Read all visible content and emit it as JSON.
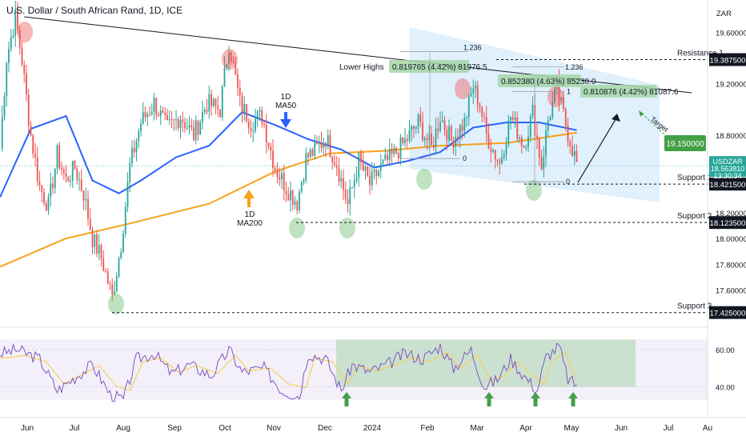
{
  "header": {
    "title": "U.S. Dollar / South African Rand, 1D, ICE"
  },
  "currency": "ZAR",
  "chart_data": {
    "type": "candlestick",
    "symbol": "USDZAR",
    "ylim": [
      17.33,
      19.85
    ],
    "y_ticks": [
      {
        "value": 19.6,
        "label": "19.600000"
      },
      {
        "value": 19.2,
        "label": "19.200000"
      },
      {
        "value": 18.8,
        "label": "18.800000"
      },
      {
        "value": 18.2,
        "label": "18.200000"
      },
      {
        "value": 18.0,
        "label": "18.000000"
      },
      {
        "value": 17.8,
        "label": "17.800000"
      },
      {
        "value": 17.6,
        "label": "17.600000"
      }
    ],
    "x_ticks": [
      "Jun",
      "Jul",
      "Aug",
      "Sep",
      "Oct",
      "Nov",
      "Dec",
      "2024",
      "Feb",
      "Mar",
      "Apr",
      "May",
      "Jun",
      "Jul",
      "Au"
    ],
    "price": {
      "label": "USDZAR",
      "value": "18.563810",
      "countdown": "13:30:34",
      "y": 18.564
    },
    "levels": [
      {
        "name": "Resistance 1",
        "value": 19.3875,
        "label": "19.387500"
      },
      {
        "name": "Support 1",
        "value": 18.4215,
        "label": "18.421500"
      },
      {
        "name": "Support 2",
        "value": 18.1235,
        "label": "18.123500"
      },
      {
        "name": "Support 3",
        "value": 17.425,
        "label": "17.425000"
      }
    ],
    "target": {
      "name": "Target",
      "value": 19.15,
      "label": "19.150000"
    },
    "moving_averages": [
      {
        "name": "1D MA50",
        "line1": "1D",
        "line2": "MA50",
        "color": "#2962ff"
      },
      {
        "name": "1D MA200",
        "line1": "1D",
        "line2": "MA200",
        "color": "#f7a21b"
      }
    ],
    "annotations": {
      "lower_highs": "Lower Highs",
      "measure_1": "0.819765 (4.42%) 81976.5",
      "measure_2": "0.852380 (4.63%) 85238.0",
      "measure_3": "0.810876 (4.42%) 81087.6",
      "fib_a_top": "1.236",
      "fib_a_zero": "0",
      "fib_b_top": "1.236",
      "fib_b_one": "1",
      "fib_b_zero": "0"
    },
    "rsi": {
      "ylim": [
        29,
        70
      ],
      "ticks": [
        {
          "value": 60,
          "label": "60.00"
        },
        {
          "value": 40,
          "label": "40.00"
        }
      ]
    },
    "colors": {
      "up": "#26a69a",
      "down": "#ef5350",
      "ma50": "#2962ff",
      "ma200": "#f7a21b",
      "rsi": "#7e57c2",
      "rsi_ma": "#f5d05b",
      "target": "#43a047"
    }
  }
}
